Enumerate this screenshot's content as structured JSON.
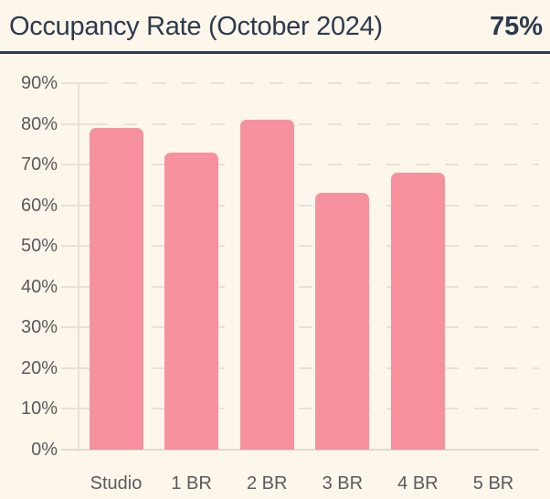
{
  "header": {
    "title": "Occupancy Rate (October 2024)",
    "value": "75%"
  },
  "chart_data": {
    "type": "bar",
    "title": "Occupancy Rate (October 2024)",
    "categories": [
      "Studio",
      "1 BR",
      "2 BR",
      "3 BR",
      "4 BR",
      "5 BR"
    ],
    "values": [
      79,
      73,
      81,
      63,
      68,
      0
    ],
    "xlabel": "",
    "ylabel": "",
    "ylim": [
      0,
      90
    ],
    "ytick_step": 10,
    "yticks": [
      "0%",
      "10%",
      "20%",
      "30%",
      "40%",
      "50%",
      "60%",
      "70%",
      "80%",
      "90%"
    ],
    "legend": null,
    "grid": "dashed-horizontal",
    "colors": {
      "bar": "#F7919E",
      "background": "#FDF6EB",
      "gridline": "#E6E2D9",
      "axis_text": "#5B5A5E",
      "header_text": "#2D3A4E"
    }
  }
}
